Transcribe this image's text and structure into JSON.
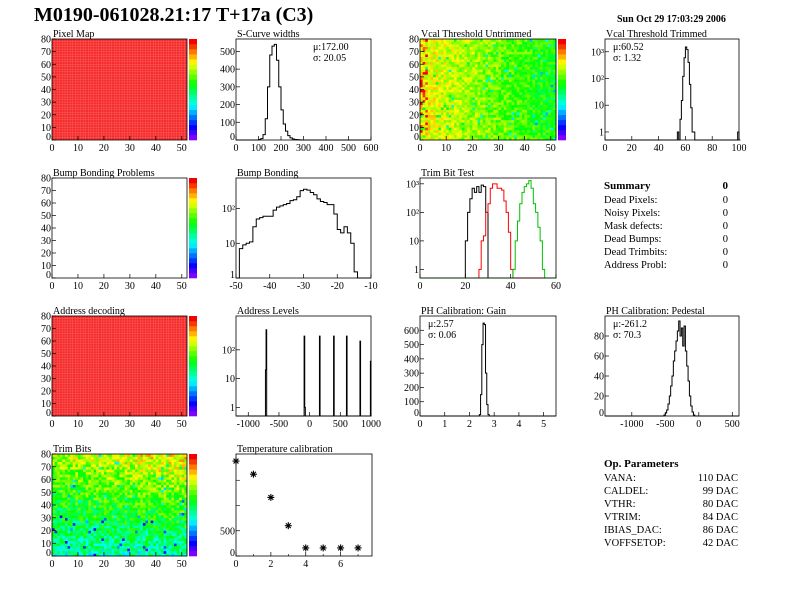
{
  "header": {
    "title": "M0190-061028.21:17 T+17a (C3)",
    "datetime": "Sun Oct 29 17:03:29 2006"
  },
  "summary": {
    "title": "Summary",
    "total": "0",
    "items": [
      {
        "label": "Dead Pixels:",
        "value": "0"
      },
      {
        "label": "Noisy Pixels:",
        "value": "0"
      },
      {
        "label": "Mask defects:",
        "value": "0"
      },
      {
        "label": "Dead Bumps:",
        "value": "0"
      },
      {
        "label": "Dead Trimbits:",
        "value": "0"
      },
      {
        "label": "Address Probl:",
        "value": "0"
      }
    ]
  },
  "op_parameters": {
    "title": "Op. Parameters",
    "items": [
      {
        "label": "VANA:",
        "value": "110 DAC"
      },
      {
        "label": "CALDEL:",
        "value": "99 DAC"
      },
      {
        "label": "VTHR:",
        "value": "80 DAC"
      },
      {
        "label": "VTRIM:",
        "value": "84 DAC"
      },
      {
        "label": "IBIAS_DAC:",
        "value": "86 DAC"
      },
      {
        "label": "VOFFSETOP:",
        "value": "42 DAC"
      }
    ]
  },
  "chart_data": [
    {
      "id": "pixel-map",
      "type": "heatmap",
      "title": "Pixel Map",
      "xlim": [
        0,
        52
      ],
      "ylim": [
        0,
        80
      ],
      "xticks": [
        0,
        10,
        20,
        30,
        40,
        50
      ],
      "yticks": [
        0,
        10,
        20,
        30,
        40,
        50,
        60,
        70,
        80
      ],
      "zlim": [
        0,
        10
      ],
      "fill": "uniform",
      "value": 10,
      "palette": true
    },
    {
      "id": "s-curve-widths",
      "type": "histogram",
      "title": "S-Curve widths",
      "xlim": [
        0,
        600
      ],
      "ylim": [
        0,
        570
      ],
      "xticks": [
        0,
        100,
        200,
        300,
        400,
        500,
        600
      ],
      "yticks": [
        0,
        100,
        200,
        300,
        400,
        500
      ],
      "log": false,
      "stats": [
        "μ:172.00",
        "σ: 20.05"
      ],
      "stats_pos": "top-right",
      "bin_width": 10,
      "series": [
        {
          "color": "#000000",
          "bins": [
            [
              100,
              3
            ],
            [
              110,
              8
            ],
            [
              120,
              30
            ],
            [
              130,
              120
            ],
            [
              140,
              300
            ],
            [
              150,
              480
            ],
            [
              160,
              530
            ],
            [
              170,
              540
            ],
            [
              180,
              450
            ],
            [
              190,
              300
            ],
            [
              200,
              170
            ],
            [
              210,
              90
            ],
            [
              220,
              50
            ],
            [
              230,
              25
            ],
            [
              240,
              12
            ],
            [
              250,
              6
            ],
            [
              260,
              3
            ],
            [
              270,
              2
            ],
            [
              280,
              1
            ]
          ]
        }
      ]
    },
    {
      "id": "vcal-threshold-untrimmed",
      "type": "heatmap",
      "title": "Vcal Threshold Untrimmed",
      "xlim": [
        0,
        52
      ],
      "ylim": [
        0,
        80
      ],
      "xticks": [
        0,
        10,
        20,
        30,
        40,
        50
      ],
      "yticks": [
        0,
        10,
        20,
        30,
        40,
        50,
        60,
        70,
        80
      ],
      "zlim": [
        85,
        125
      ],
      "fill": "map",
      "palette": true
    },
    {
      "id": "vcal-threshold-trimmed",
      "type": "histogram",
      "title": "Vcal Threshold Trimmed",
      "xlim": [
        0,
        100
      ],
      "ylim": [
        0.5,
        3000
      ],
      "log": true,
      "xticks": [
        0,
        20,
        40,
        60,
        80,
        100
      ],
      "yticks": [
        1,
        10,
        100,
        1000
      ],
      "stats": [
        "μ:60.52",
        "σ: 1.32"
      ],
      "stats_pos": "top-left",
      "bin_width": 1,
      "series": [
        {
          "color": "#000000",
          "bins": [
            [
              54,
              1
            ],
            [
              56,
              3
            ],
            [
              57,
              15
            ],
            [
              58,
              120
            ],
            [
              59,
              600
            ],
            [
              60,
              1500
            ],
            [
              61,
              1200
            ],
            [
              62,
              400
            ],
            [
              63,
              60
            ],
            [
              64,
              8
            ],
            [
              65,
              1
            ],
            [
              66,
              1
            ],
            [
              99,
              1
            ]
          ]
        }
      ]
    },
    {
      "id": "bump-bonding-problems",
      "type": "heatmap",
      "title": "Bump Bonding Problems",
      "xlim": [
        0,
        52
      ],
      "ylim": [
        0,
        80
      ],
      "xticks": [
        0,
        10,
        20,
        30,
        40,
        50
      ],
      "yticks": [
        0,
        10,
        20,
        30,
        40,
        50,
        60,
        70,
        80
      ],
      "zlim": [
        0,
        1
      ],
      "fill": "empty",
      "palette": true
    },
    {
      "id": "bump-bonding",
      "type": "histogram",
      "title": "Bump Bonding",
      "xlim": [
        -50,
        -10
      ],
      "ylim": [
        1,
        760
      ],
      "log": true,
      "xticks": [
        -50,
        -40,
        -30,
        -20,
        -10
      ],
      "yticks": [
        1,
        10,
        100
      ],
      "bin_width": 1,
      "series": [
        {
          "color": "#000000",
          "bins": [
            [
              -49,
              7
            ],
            [
              -48,
              9
            ],
            [
              -47,
              10
            ],
            [
              -46,
              11
            ],
            [
              -45,
              30
            ],
            [
              -44,
              50
            ],
            [
              -43,
              55
            ],
            [
              -42,
              60
            ],
            [
              -41,
              60
            ],
            [
              -40,
              60
            ],
            [
              -39,
              90
            ],
            [
              -38,
              110
            ],
            [
              -37,
              120
            ],
            [
              -36,
              130
            ],
            [
              -35,
              140
            ],
            [
              -34,
              170
            ],
            [
              -33,
              180
            ],
            [
              -32,
              220
            ],
            [
              -31,
              330
            ],
            [
              -30,
              360
            ],
            [
              -29,
              340
            ],
            [
              -28,
              290
            ],
            [
              -27,
              250
            ],
            [
              -26,
              190
            ],
            [
              -25,
              160
            ],
            [
              -24,
              150
            ],
            [
              -23,
              130
            ],
            [
              -22,
              130
            ],
            [
              -21,
              70
            ],
            [
              -20,
              25
            ],
            [
              -19,
              20
            ],
            [
              -18,
              30
            ],
            [
              -17,
              20
            ],
            [
              -16,
              10
            ],
            [
              -15,
              1.5
            ]
          ]
        }
      ]
    },
    {
      "id": "trim-bit-test",
      "type": "histogram",
      "title": "Trim Bit Test",
      "xlim": [
        0,
        60
      ],
      "ylim": [
        0.5,
        1600
      ],
      "log": true,
      "xticks": [
        0,
        20,
        40,
        60
      ],
      "yticks": [
        1,
        10,
        100,
        1000
      ],
      "bin_width": 1,
      "series": [
        {
          "color": "#000000",
          "bins": [
            [
              20,
              10
            ],
            [
              21,
              100
            ],
            [
              22,
              300
            ],
            [
              23,
              700
            ],
            [
              24,
              500
            ],
            [
              25,
              800
            ],
            [
              26,
              500
            ],
            [
              27,
              900
            ],
            [
              28,
              800
            ],
            [
              29,
              100
            ]
          ]
        },
        {
          "color": "#ff0000",
          "bins": [
            [
              26,
              1
            ],
            [
              27,
              10
            ],
            [
              28,
              15
            ],
            [
              29,
              100
            ],
            [
              30,
              200
            ],
            [
              31,
              700
            ],
            [
              32,
              1000
            ],
            [
              33,
              1000
            ],
            [
              34,
              700
            ],
            [
              35,
              700
            ],
            [
              36,
              600
            ],
            [
              37,
              250
            ],
            [
              38,
              100
            ],
            [
              39,
              20
            ],
            [
              40,
              1
            ]
          ]
        },
        {
          "color": "#00c000",
          "bins": [
            [
              41,
              1
            ],
            [
              42,
              10
            ],
            [
              43,
              50
            ],
            [
              44,
              200
            ],
            [
              45,
              500
            ],
            [
              46,
              800
            ],
            [
              47,
              1000
            ],
            [
              48,
              1300
            ],
            [
              49,
              700
            ],
            [
              50,
              200
            ],
            [
              51,
              100
            ],
            [
              52,
              30
            ],
            [
              53,
              10
            ],
            [
              54,
              1
            ]
          ]
        }
      ]
    },
    {
      "id": "address-decoding",
      "type": "heatmap",
      "title": "Address decoding",
      "xlim": [
        0,
        52
      ],
      "ylim": [
        0,
        80
      ],
      "xticks": [
        0,
        10,
        20,
        30,
        40,
        50
      ],
      "yticks": [
        0,
        10,
        20,
        30,
        40,
        50,
        60,
        70,
        80
      ],
      "zlim": [
        0,
        1
      ],
      "fill": "uniform",
      "value": 1,
      "palette": true
    },
    {
      "id": "address-levels",
      "type": "histogram",
      "title": "Address Levels",
      "xlim": [
        -1200,
        1000
      ],
      "ylim": [
        0.5,
        1500
      ],
      "log": true,
      "xticks": [
        -1000,
        -500,
        0,
        500,
        1000
      ],
      "yticks": [
        1,
        10,
        100
      ],
      "bin_width": 10,
      "series": [
        {
          "color": "#000000",
          "bins": [
            [
              -720,
              20
            ],
            [
              -710,
              500
            ],
            [
              -90,
              300
            ],
            [
              -80,
              1
            ],
            [
              160,
              300
            ],
            [
              390,
              300
            ],
            [
              600,
              300
            ],
            [
              820,
              200
            ],
            [
              990,
              40
            ]
          ]
        }
      ]
    },
    {
      "id": "ph-calibration-gain",
      "type": "histogram",
      "title": "PH Calibration: Gain",
      "xlim": [
        0,
        5.5
      ],
      "ylim": [
        0,
        700
      ],
      "log": false,
      "xticks": [
        0,
        1,
        2,
        3,
        4,
        5
      ],
      "yticks": [
        0,
        100,
        200,
        300,
        400,
        500,
        600
      ],
      "stats": [
        "μ:2.57",
        "σ: 0.06"
      ],
      "stats_pos": "top-left",
      "bin_width": 0.05,
      "series": [
        {
          "color": "#000000",
          "bins": [
            [
              2.4,
              10
            ],
            [
              2.45,
              150
            ],
            [
              2.5,
              500
            ],
            [
              2.55,
              650
            ],
            [
              2.6,
              640
            ],
            [
              2.65,
              300
            ],
            [
              2.7,
              80
            ],
            [
              2.75,
              10
            ]
          ]
        }
      ]
    },
    {
      "id": "ph-calibration-pedestal",
      "type": "histogram",
      "title": "PH Calibration: Pedestal",
      "xlim": [
        -1400,
        600
      ],
      "ylim": [
        0,
        100
      ],
      "log": false,
      "xticks": [
        -1000,
        -500,
        0,
        500
      ],
      "yticks": [
        0,
        20,
        40,
        60,
        80
      ],
      "stats": [
        "μ:-261.2",
        "σ: 70.3"
      ],
      "stats_pos": "top-left",
      "bin_width": 20,
      "series": [
        {
          "color": "#000000",
          "bins": [
            [
              -520,
              1
            ],
            [
              -500,
              3
            ],
            [
              -480,
              6
            ],
            [
              -460,
              12
            ],
            [
              -440,
              20
            ],
            [
              -420,
              30
            ],
            [
              -400,
              40
            ],
            [
              -380,
              55
            ],
            [
              -360,
              65
            ],
            [
              -340,
              75
            ],
            [
              -320,
              85
            ],
            [
              -300,
              95
            ],
            [
              -280,
              80
            ],
            [
              -260,
              88
            ],
            [
              -240,
              70
            ],
            [
              -220,
              90
            ],
            [
              -200,
              65
            ],
            [
              -180,
              50
            ],
            [
              -160,
              35
            ],
            [
              -140,
              20
            ],
            [
              -120,
              10
            ],
            [
              -100,
              4
            ],
            [
              -80,
              1
            ]
          ]
        }
      ]
    },
    {
      "id": "trim-bits",
      "type": "heatmap",
      "title": "Trim Bits",
      "xlim": [
        0,
        52
      ],
      "ylim": [
        0,
        80
      ],
      "xticks": [
        0,
        10,
        20,
        30,
        40,
        50
      ],
      "yticks": [
        0,
        10,
        20,
        30,
        40,
        50,
        60,
        70,
        80
      ],
      "zlim": [
        0,
        16
      ],
      "fill": "map",
      "palette": true
    },
    {
      "id": "temperature-calibration",
      "type": "scatter",
      "title": "Temperature calibration",
      "xlim": [
        0,
        7.8
      ],
      "ylim": [
        0,
        2020
      ],
      "xticks": [
        0,
        2,
        4,
        6
      ],
      "xminor": [
        1,
        3,
        5,
        7
      ],
      "yticks": [
        0,
        500
      ],
      "yminor": [
        1000,
        1500
      ],
      "marker": "star",
      "points": [
        [
          0,
          1880
        ],
        [
          1,
          1620
        ],
        [
          2,
          1160
        ],
        [
          3,
          600
        ],
        [
          4,
          160
        ],
        [
          5,
          160
        ],
        [
          6,
          160
        ],
        [
          7,
          160
        ]
      ]
    }
  ]
}
